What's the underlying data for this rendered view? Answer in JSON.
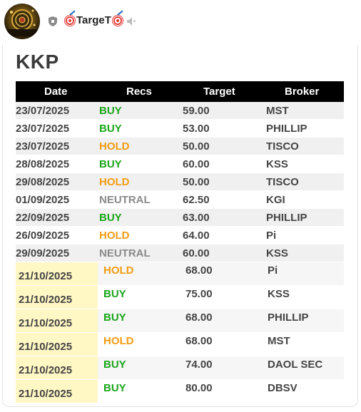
{
  "channel": {
    "name": "TargeT",
    "avatar_icon": "dartboard-avatar",
    "badge_icon": "shield-icon",
    "mute_icon": "speaker-muted-icon"
  },
  "card": {
    "title": "KKP",
    "columns": [
      "Date",
      "Recs",
      "Target",
      "Broker"
    ],
    "colors": {
      "BUY": "#1aa51a",
      "HOLD": "#f39c12",
      "NEUTRAL": "#8a8a8a",
      "header_bg": "#000000",
      "highlight": "#fff7c4"
    },
    "rows": [
      {
        "date": "23/07/2025",
        "rec": "BUY",
        "target": "59.00",
        "broker": "MST"
      },
      {
        "date": "23/07/2025",
        "rec": "BUY",
        "target": "53.00",
        "broker": "PHILLIP"
      },
      {
        "date": "23/07/2025",
        "rec": "HOLD",
        "target": "50.00",
        "broker": "TISCO"
      },
      {
        "date": "28/08/2025",
        "rec": "BUY",
        "target": "60.00",
        "broker": "KSS"
      },
      {
        "date": "29/08/2025",
        "rec": "HOLD",
        "target": "50.00",
        "broker": "TISCO"
      },
      {
        "date": "01/09/2025",
        "rec": "NEUTRAL",
        "target": "62.50",
        "broker": "KGI"
      },
      {
        "date": "22/09/2025",
        "rec": "BUY",
        "target": "63.00",
        "broker": "PHILLIP"
      },
      {
        "date": "26/09/2025",
        "rec": "HOLD",
        "target": "64.00",
        "broker": "Pi"
      },
      {
        "date": "29/09/2025",
        "rec": "NEUTRAL",
        "target": "60.00",
        "broker": "KSS"
      }
    ],
    "new_rows": [
      {
        "date": "21/10/2025",
        "rec": "HOLD",
        "target": "68.00",
        "broker": "Pi"
      },
      {
        "date": "21/10/2025",
        "rec": "BUY",
        "target": "75.00",
        "broker": "KSS"
      },
      {
        "date": "21/10/2025",
        "rec": "BUY",
        "target": "68.00",
        "broker": "PHILLIP"
      },
      {
        "date": "21/10/2025",
        "rec": "HOLD",
        "target": "68.00",
        "broker": "MST"
      },
      {
        "date": "21/10/2025",
        "rec": "BUY",
        "target": "74.00",
        "broker": "DAOL SEC"
      },
      {
        "date": "21/10/2025",
        "rec": "BUY",
        "target": "80.00",
        "broker": "DBSV"
      }
    ]
  }
}
